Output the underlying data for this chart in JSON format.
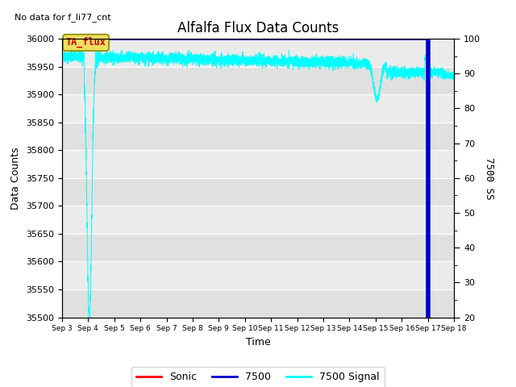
{
  "title": "Alfalfa Flux Data Counts",
  "no_data_label": "No data for f_li77_cnt",
  "ta_flux_label": "TA_flux",
  "xlabel": "Time",
  "ylabel_left": "Data Counts",
  "ylabel_right": "7500 SS",
  "ylim_left": [
    35500,
    36000
  ],
  "ylim_right": [
    20,
    100
  ],
  "yticks_left": [
    35500,
    35550,
    35600,
    35650,
    35700,
    35750,
    35800,
    35850,
    35900,
    35950,
    36000
  ],
  "yticks_right": [
    20,
    30,
    40,
    50,
    60,
    70,
    80,
    90,
    100
  ],
  "xtick_labels": [
    "Sep 3",
    "Sep 4",
    "Sep 5",
    "Sep 6",
    "Sep 7",
    "Sep 8",
    "Sep 9",
    "Sep 10",
    "Sep 11",
    "Sep 12",
    "Sep 13",
    "Sep 14",
    "Sep 15",
    "Sep 16",
    "Sep 17",
    "Sep 18"
  ],
  "background_color": "#e0e0e0",
  "alt_band_color": "#ebebeb",
  "line_colors": {
    "sonic": "#ff0000",
    "7500": "#0000cc",
    "7500_signal": "#00ffff"
  },
  "legend_labels": [
    "Sonic",
    "7500",
    "7500 Signal"
  ],
  "title_fontsize": 12,
  "axis_label_fontsize": 9,
  "tick_fontsize": 8
}
